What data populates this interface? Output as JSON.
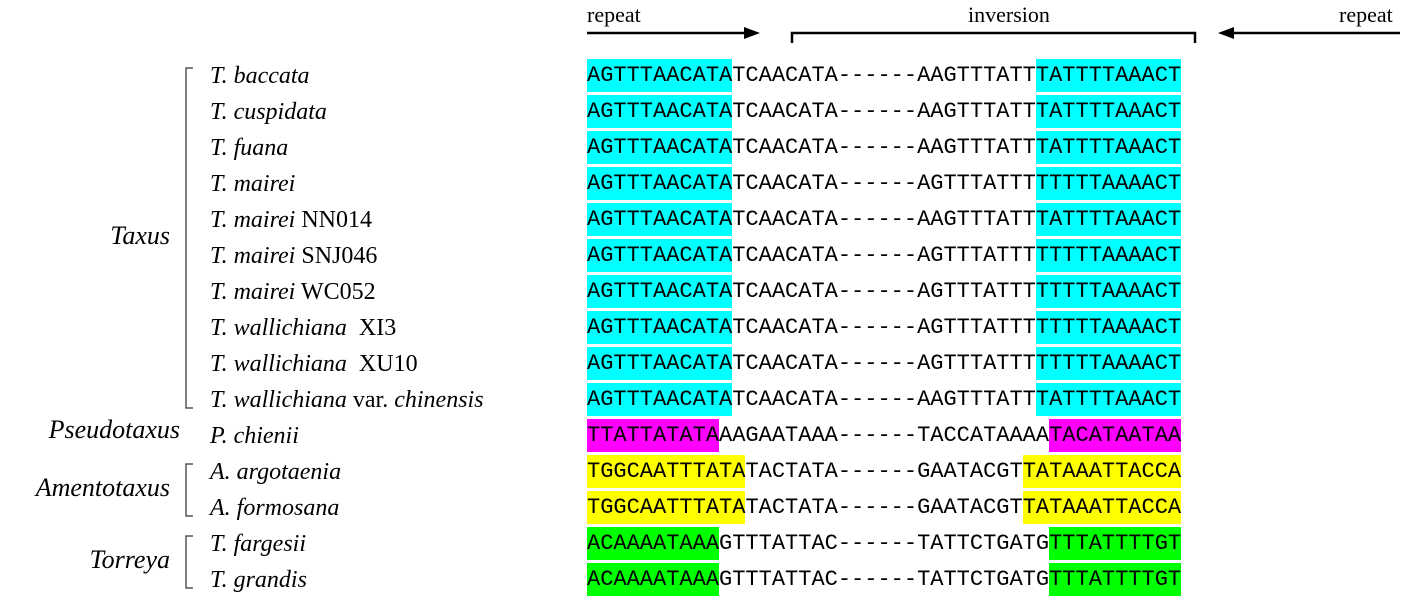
{
  "header": {
    "repeat_left": "repeat",
    "inversion": "inversion",
    "repeat_right": "repeat"
  },
  "colors": {
    "taxus": "#00ffff",
    "pseudotaxus": "#ff00ff",
    "amentotaxus": "#ffff00",
    "torreya": "#00ff00"
  },
  "genera": [
    {
      "name": "Taxus",
      "color_key": "taxus"
    },
    {
      "name": "Pseudotaxus",
      "color_key": "pseudotaxus"
    },
    {
      "name": "Amentotaxus",
      "color_key": "amentotaxus"
    },
    {
      "name": "Torreya",
      "color_key": "torreya"
    }
  ],
  "species": [
    {
      "genus": "Taxus",
      "italic": "T. baccata",
      "plain": "",
      "seq": [
        "AGTTTAACATA",
        "TCAACATA------AAGTTTATT",
        "TATTTTAAACT"
      ]
    },
    {
      "genus": "Taxus",
      "italic": "T. cuspidata",
      "plain": "",
      "seq": [
        "AGTTTAACATA",
        "TCAACATA------AAGTTTATT",
        "TATTTTAAACT"
      ]
    },
    {
      "genus": "Taxus",
      "italic": "T. fuana",
      "plain": "",
      "seq": [
        "AGTTTAACATA",
        "TCAACATA------AAGTTTATT",
        "TATTTTAAACT"
      ]
    },
    {
      "genus": "Taxus",
      "italic": "T. mairei",
      "plain": "",
      "seq": [
        "AGTTTAACATA",
        "TCAACATA------AGTTTATTT",
        "TTTTTAAAACT"
      ]
    },
    {
      "genus": "Taxus",
      "italic": "T. mairei",
      "plain": " NN014",
      "seq": [
        "AGTTTAACATA",
        "TCAACATA------AAGTTTATT",
        "TATTTTAAACT"
      ]
    },
    {
      "genus": "Taxus",
      "italic": "T. mairei",
      "plain": " SNJ046",
      "seq": [
        "AGTTTAACATA",
        "TCAACATA------AGTTTATTT",
        "TTTTTAAAACT"
      ]
    },
    {
      "genus": "Taxus",
      "italic": "T. mairei",
      "plain": " WC052",
      "seq": [
        "AGTTTAACATA",
        "TCAACATA------AGTTTATTT",
        "TTTTTAAAACT"
      ]
    },
    {
      "genus": "Taxus",
      "italic": "T. wallichiana",
      "plain": "  XI3",
      "seq": [
        "AGTTTAACATA",
        "TCAACATA------AGTTTATTT",
        "TTTTTAAAACT"
      ]
    },
    {
      "genus": "Taxus",
      "italic": "T. wallichiana",
      "plain": "  XU10",
      "seq": [
        "AGTTTAACATA",
        "TCAACATA------AGTTTATTT",
        "TTTTTAAAACT"
      ]
    },
    {
      "genus": "Taxus",
      "italic": "T. wallichiana",
      "plain": " var. ",
      "italic2": "chinensis",
      "seq": [
        "AGTTTAACATA",
        "TCAACATA------AAGTTTATT",
        "TATTTTAAACT"
      ]
    },
    {
      "genus": "Pseudotaxus",
      "italic": "P. chienii",
      "plain": "",
      "seq": [
        "TTATTATATA",
        "AAGAATAAA------TACCATAAAA",
        "TACATAATAA"
      ]
    },
    {
      "genus": "Amentotaxus",
      "italic": "A. argotaenia",
      "plain": "",
      "seq": [
        "TGGCAATTTATA",
        "TACTATA------GAATACGT",
        "TATAAATTACCA"
      ]
    },
    {
      "genus": "Amentotaxus",
      "italic": "A. formosana",
      "plain": "",
      "seq": [
        "TGGCAATTTATA",
        "TACTATA------GAATACGT",
        "TATAAATTACCA"
      ]
    },
    {
      "genus": "Torreya",
      "italic": "T. fargesii",
      "plain": "",
      "seq": [
        "ACAAAATAAA",
        "GTTTATTAC------TATTCTGATG",
        "TTTATTTTGT"
      ]
    },
    {
      "genus": "Torreya",
      "italic": "T. grandis",
      "plain": "",
      "seq": [
        "ACAAAATAAA",
        "GTTTATTAC------TATTCTGATG",
        "TTTATTTTGT"
      ]
    }
  ]
}
